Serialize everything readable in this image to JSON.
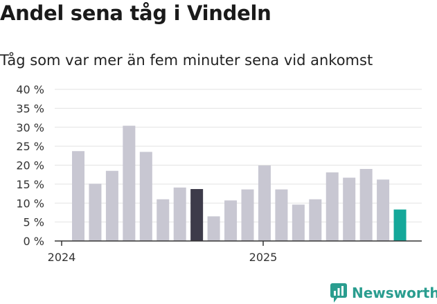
{
  "colors": {
    "bar": "#c8c7d2",
    "highlight_dark": "#3d3b4a",
    "highlight_current": "#14a89a",
    "grid": "#e2e2e2",
    "axis": "#333333",
    "brand": "#2a9d8f"
  },
  "brand": {
    "name": "Newsworthy",
    "icon": "newsworthy-logo-icon"
  },
  "chart_data": {
    "type": "bar",
    "title": "Andel sena tåg i Vindeln",
    "subtitle": "Tåg som var mer än fem minuter sena vid ankomst",
    "ylim": [
      0,
      40
    ],
    "y_ticks": [
      "0 %",
      "5 %",
      "10 %",
      "15 %",
      "20 %",
      "25 %",
      "30 %",
      "35 %",
      "40 %"
    ],
    "x_ticks": [
      "2024",
      "2025"
    ],
    "grid": "horizontal",
    "values": [
      23.7,
      15.1,
      18.5,
      30.4,
      23.5,
      11.0,
      14.1,
      13.7,
      6.5,
      10.7,
      13.6,
      19.9,
      13.6,
      9.6,
      11.0,
      18.1,
      16.7,
      19.0,
      16.2,
      8.3
    ],
    "highlight": {
      "dark": [
        7
      ],
      "current": [
        19
      ]
    }
  }
}
